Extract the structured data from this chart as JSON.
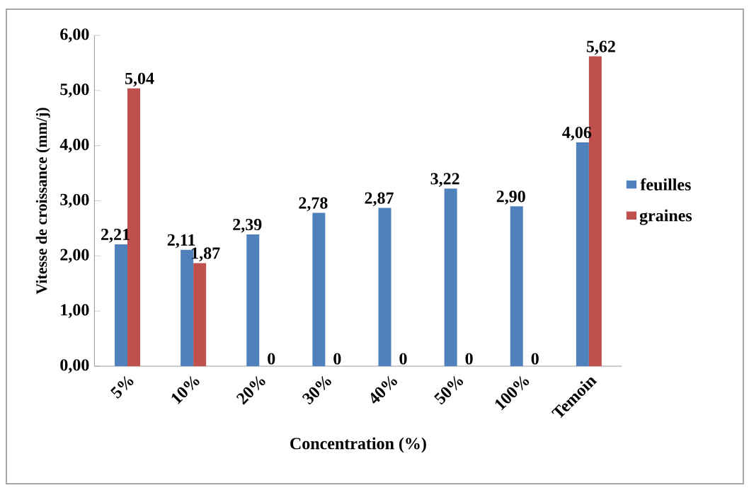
{
  "chart_data": {
    "type": "bar",
    "xlabel": "Concentration  (%)",
    "ylabel": "Vitesse de croissance (mm/j)",
    "categories": [
      "5%",
      "10%",
      "20%",
      "30%",
      "40%",
      "50%",
      "100%",
      "Temoin"
    ],
    "series": [
      {
        "name": "feuilles",
        "color": "#4f81bd",
        "values": [
          2.21,
          2.11,
          2.39,
          2.78,
          2.87,
          3.22,
          2.9,
          4.06
        ],
        "value_labels": [
          "2,21",
          "2,11",
          "2,39",
          "2,78",
          "2,87",
          "3,22",
          "2,90",
          "4,06"
        ]
      },
      {
        "name": "graines",
        "color": "#c0504d",
        "values": [
          5.04,
          1.87,
          0,
          0,
          0,
          0,
          0,
          5.62
        ],
        "value_labels": [
          "5,04",
          "1,87",
          "0",
          "0",
          "0",
          "0",
          "0",
          "5,62"
        ]
      }
    ],
    "ylim": [
      0,
      6
    ],
    "yticks": [
      {
        "value": 0,
        "label": "0,00"
      },
      {
        "value": 1,
        "label": "1,00"
      },
      {
        "value": 2,
        "label": "2,00"
      },
      {
        "value": 3,
        "label": "3,00"
      },
      {
        "value": 4,
        "label": "4,00"
      },
      {
        "value": 5,
        "label": "5,00"
      },
      {
        "value": 6,
        "label": "6,00"
      }
    ],
    "legend": "right"
  }
}
